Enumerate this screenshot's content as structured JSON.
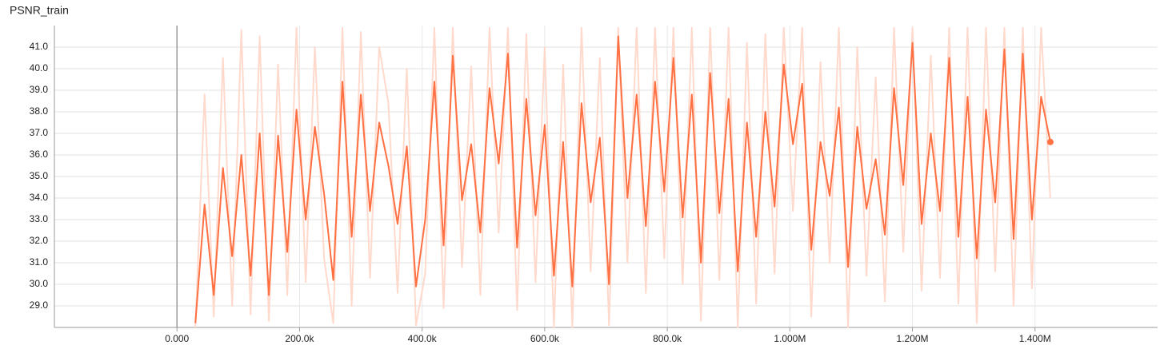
{
  "chart_data": {
    "type": "line",
    "title": "PSNR_train",
    "x": [
      30000,
      45000,
      60000,
      75000,
      90000,
      105000,
      120000,
      135000,
      150000,
      165000,
      180000,
      195000,
      210000,
      225000,
      240000,
      255000,
      270000,
      285000,
      300000,
      315000,
      330000,
      345000,
      360000,
      375000,
      390000,
      405000,
      420000,
      435000,
      450000,
      465000,
      480000,
      495000,
      510000,
      525000,
      540000,
      555000,
      570000,
      585000,
      600000,
      615000,
      630000,
      645000,
      660000,
      675000,
      690000,
      705000,
      720000,
      735000,
      750000,
      765000,
      780000,
      795000,
      810000,
      825000,
      840000,
      855000,
      870000,
      885000,
      900000,
      915000,
      930000,
      945000,
      960000,
      975000,
      990000,
      1005000,
      1020000,
      1035000,
      1050000,
      1065000,
      1080000,
      1095000,
      1110000,
      1125000,
      1140000,
      1155000,
      1170000,
      1185000,
      1200000,
      1215000,
      1230000,
      1245000,
      1260000,
      1275000,
      1290000,
      1305000,
      1320000,
      1335000,
      1350000,
      1365000,
      1380000,
      1395000,
      1410000,
      1425000
    ],
    "series": [
      {
        "color": "#ffd9cc",
        "values": [
          28.0,
          38.8,
          28.5,
          40.5,
          29.0,
          41.8,
          28.6,
          41.5,
          28.3,
          40.2,
          29.5,
          41.9,
          30.1,
          41.0,
          31.2,
          28.2,
          41.9,
          29.0,
          41.7,
          30.3,
          41.0,
          38.4,
          29.6,
          40.0,
          28.1,
          30.5,
          41.9,
          28.9,
          41.9,
          30.8,
          40.1,
          29.5,
          41.9,
          32.4,
          41.9,
          28.8,
          41.6,
          30.1,
          41.0,
          28.0,
          40.2,
          28.0,
          41.9,
          30.6,
          40.5,
          28.1,
          41.9,
          31.0,
          41.9,
          29.6,
          41.9,
          31.2,
          41.9,
          30.0,
          41.9,
          28.3,
          41.9,
          30.2,
          41.9,
          28.0,
          41.2,
          29.1,
          41.6,
          30.5,
          41.9,
          33.4,
          41.9,
          28.5,
          40.3,
          31.0,
          41.9,
          28.0,
          41.0,
          30.4,
          39.6,
          29.2,
          41.9,
          31.5,
          41.9,
          29.7,
          40.6,
          30.3,
          41.9,
          29.1,
          41.9,
          28.2,
          41.9,
          30.6,
          41.9,
          29.0,
          41.9,
          29.8,
          41.9,
          34.0
        ]
      },
      {
        "color": "#ff7043",
        "values": [
          28.2,
          33.7,
          29.5,
          35.4,
          31.3,
          36.0,
          30.4,
          37.0,
          29.5,
          36.9,
          31.5,
          38.1,
          33.0,
          37.3,
          34.2,
          30.2,
          39.4,
          32.2,
          38.8,
          33.4,
          37.5,
          35.5,
          32.8,
          36.4,
          29.9,
          33.0,
          39.4,
          31.8,
          40.6,
          33.9,
          36.5,
          32.4,
          39.1,
          35.6,
          40.7,
          31.7,
          38.6,
          33.2,
          37.4,
          30.4,
          36.6,
          29.9,
          38.4,
          33.8,
          36.8,
          30.0,
          41.5,
          34.0,
          38.8,
          32.7,
          39.4,
          34.3,
          40.5,
          33.1,
          38.8,
          31.0,
          39.8,
          33.3,
          38.6,
          30.6,
          37.5,
          32.2,
          38.0,
          33.6,
          40.2,
          36.5,
          39.3,
          31.6,
          36.6,
          34.1,
          38.2,
          30.8,
          37.3,
          33.5,
          35.8,
          32.3,
          39.1,
          34.6,
          41.2,
          32.8,
          37.0,
          33.4,
          40.5,
          32.2,
          38.7,
          31.2,
          38.1,
          33.8,
          40.9,
          32.1,
          40.7,
          33.0,
          38.7,
          36.6
        ]
      }
    ],
    "xlim": [
      -200000,
      1600000
    ],
    "xticks": [
      {
        "value": 0,
        "label": "0.000"
      },
      {
        "value": 200000,
        "label": "200.0k"
      },
      {
        "value": 400000,
        "label": "400.0k"
      },
      {
        "value": 600000,
        "label": "600.0k"
      },
      {
        "value": 800000,
        "label": "800.0k"
      },
      {
        "value": 1000000,
        "label": "1.000M"
      },
      {
        "value": 1200000,
        "label": "1.200M"
      },
      {
        "value": 1400000,
        "label": "1.400M"
      }
    ],
    "ylim": [
      28,
      42
    ],
    "yticks": [
      {
        "value": 29,
        "label": "29.0"
      },
      {
        "value": 30,
        "label": "30.0"
      },
      {
        "value": 31,
        "label": "31.0"
      },
      {
        "value": 32,
        "label": "32.0"
      },
      {
        "value": 33,
        "label": "33.0"
      },
      {
        "value": 34,
        "label": "34.0"
      },
      {
        "value": 35,
        "label": "35.0"
      },
      {
        "value": 36,
        "label": "36.0"
      },
      {
        "value": 37,
        "label": "37.0"
      },
      {
        "value": 38,
        "label": "38.0"
      },
      {
        "value": 39,
        "label": "39.0"
      },
      {
        "value": 40,
        "label": "40.0"
      },
      {
        "value": 41,
        "label": "41.0"
      }
    ],
    "grid": true
  }
}
